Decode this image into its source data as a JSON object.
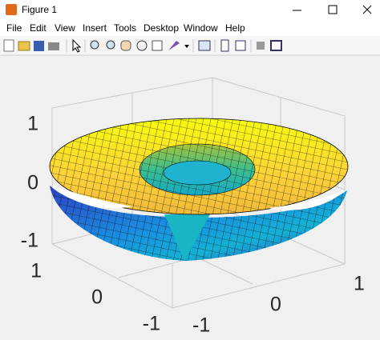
{
  "window": {
    "title": "Figure 1"
  },
  "menu": [
    "File",
    "Edit",
    "View",
    "Insert",
    "Tools",
    "Desktop",
    "Window",
    "Help"
  ],
  "axes": {
    "z_ticks": [
      1,
      0,
      -1
    ],
    "y_ticks": [
      1,
      0,
      -1
    ],
    "x_ticks": [
      -1,
      0,
      1
    ]
  }
}
